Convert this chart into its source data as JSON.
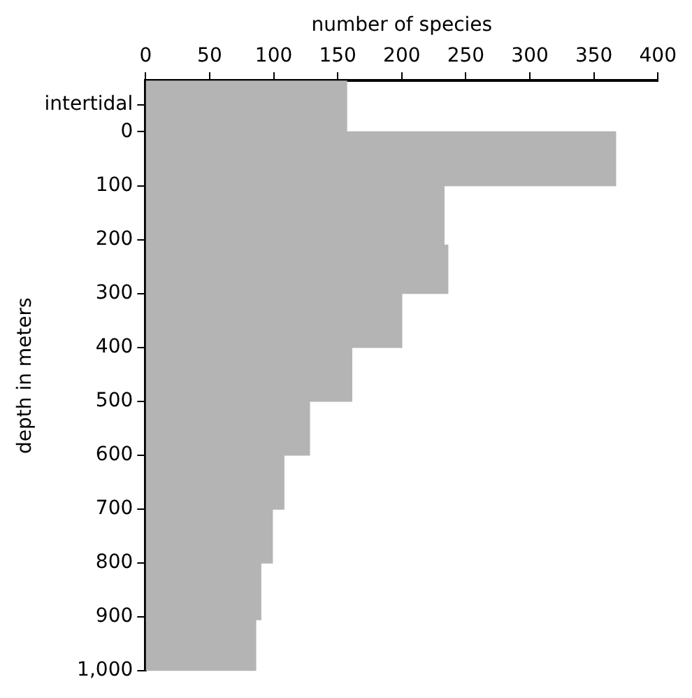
{
  "chart_data": {
    "type": "histogram",
    "orientation": "horizontal",
    "xlabel": "number of species",
    "ylabel": "depth in meters",
    "bins": [
      -95,
      0,
      100,
      210,
      300,
      400,
      500,
      600,
      700,
      800,
      905,
      1000
    ],
    "values": [
      157,
      367,
      233,
      236,
      200,
      161,
      128,
      108,
      99,
      90,
      86
    ],
    "color": "#b4b4b4",
    "xlim": [
      0,
      400
    ],
    "xticks": [
      0,
      50,
      100,
      150,
      200,
      250,
      300,
      350,
      400
    ],
    "ylim": [
      1000,
      -95
    ],
    "yticks": [
      {
        "value": -50,
        "label": "intertidal"
      },
      0,
      100,
      200,
      300,
      400,
      500,
      600,
      700,
      800,
      900,
      {
        "value": 1000,
        "label": "1,000"
      }
    ],
    "grid": false,
    "legend": false
  }
}
